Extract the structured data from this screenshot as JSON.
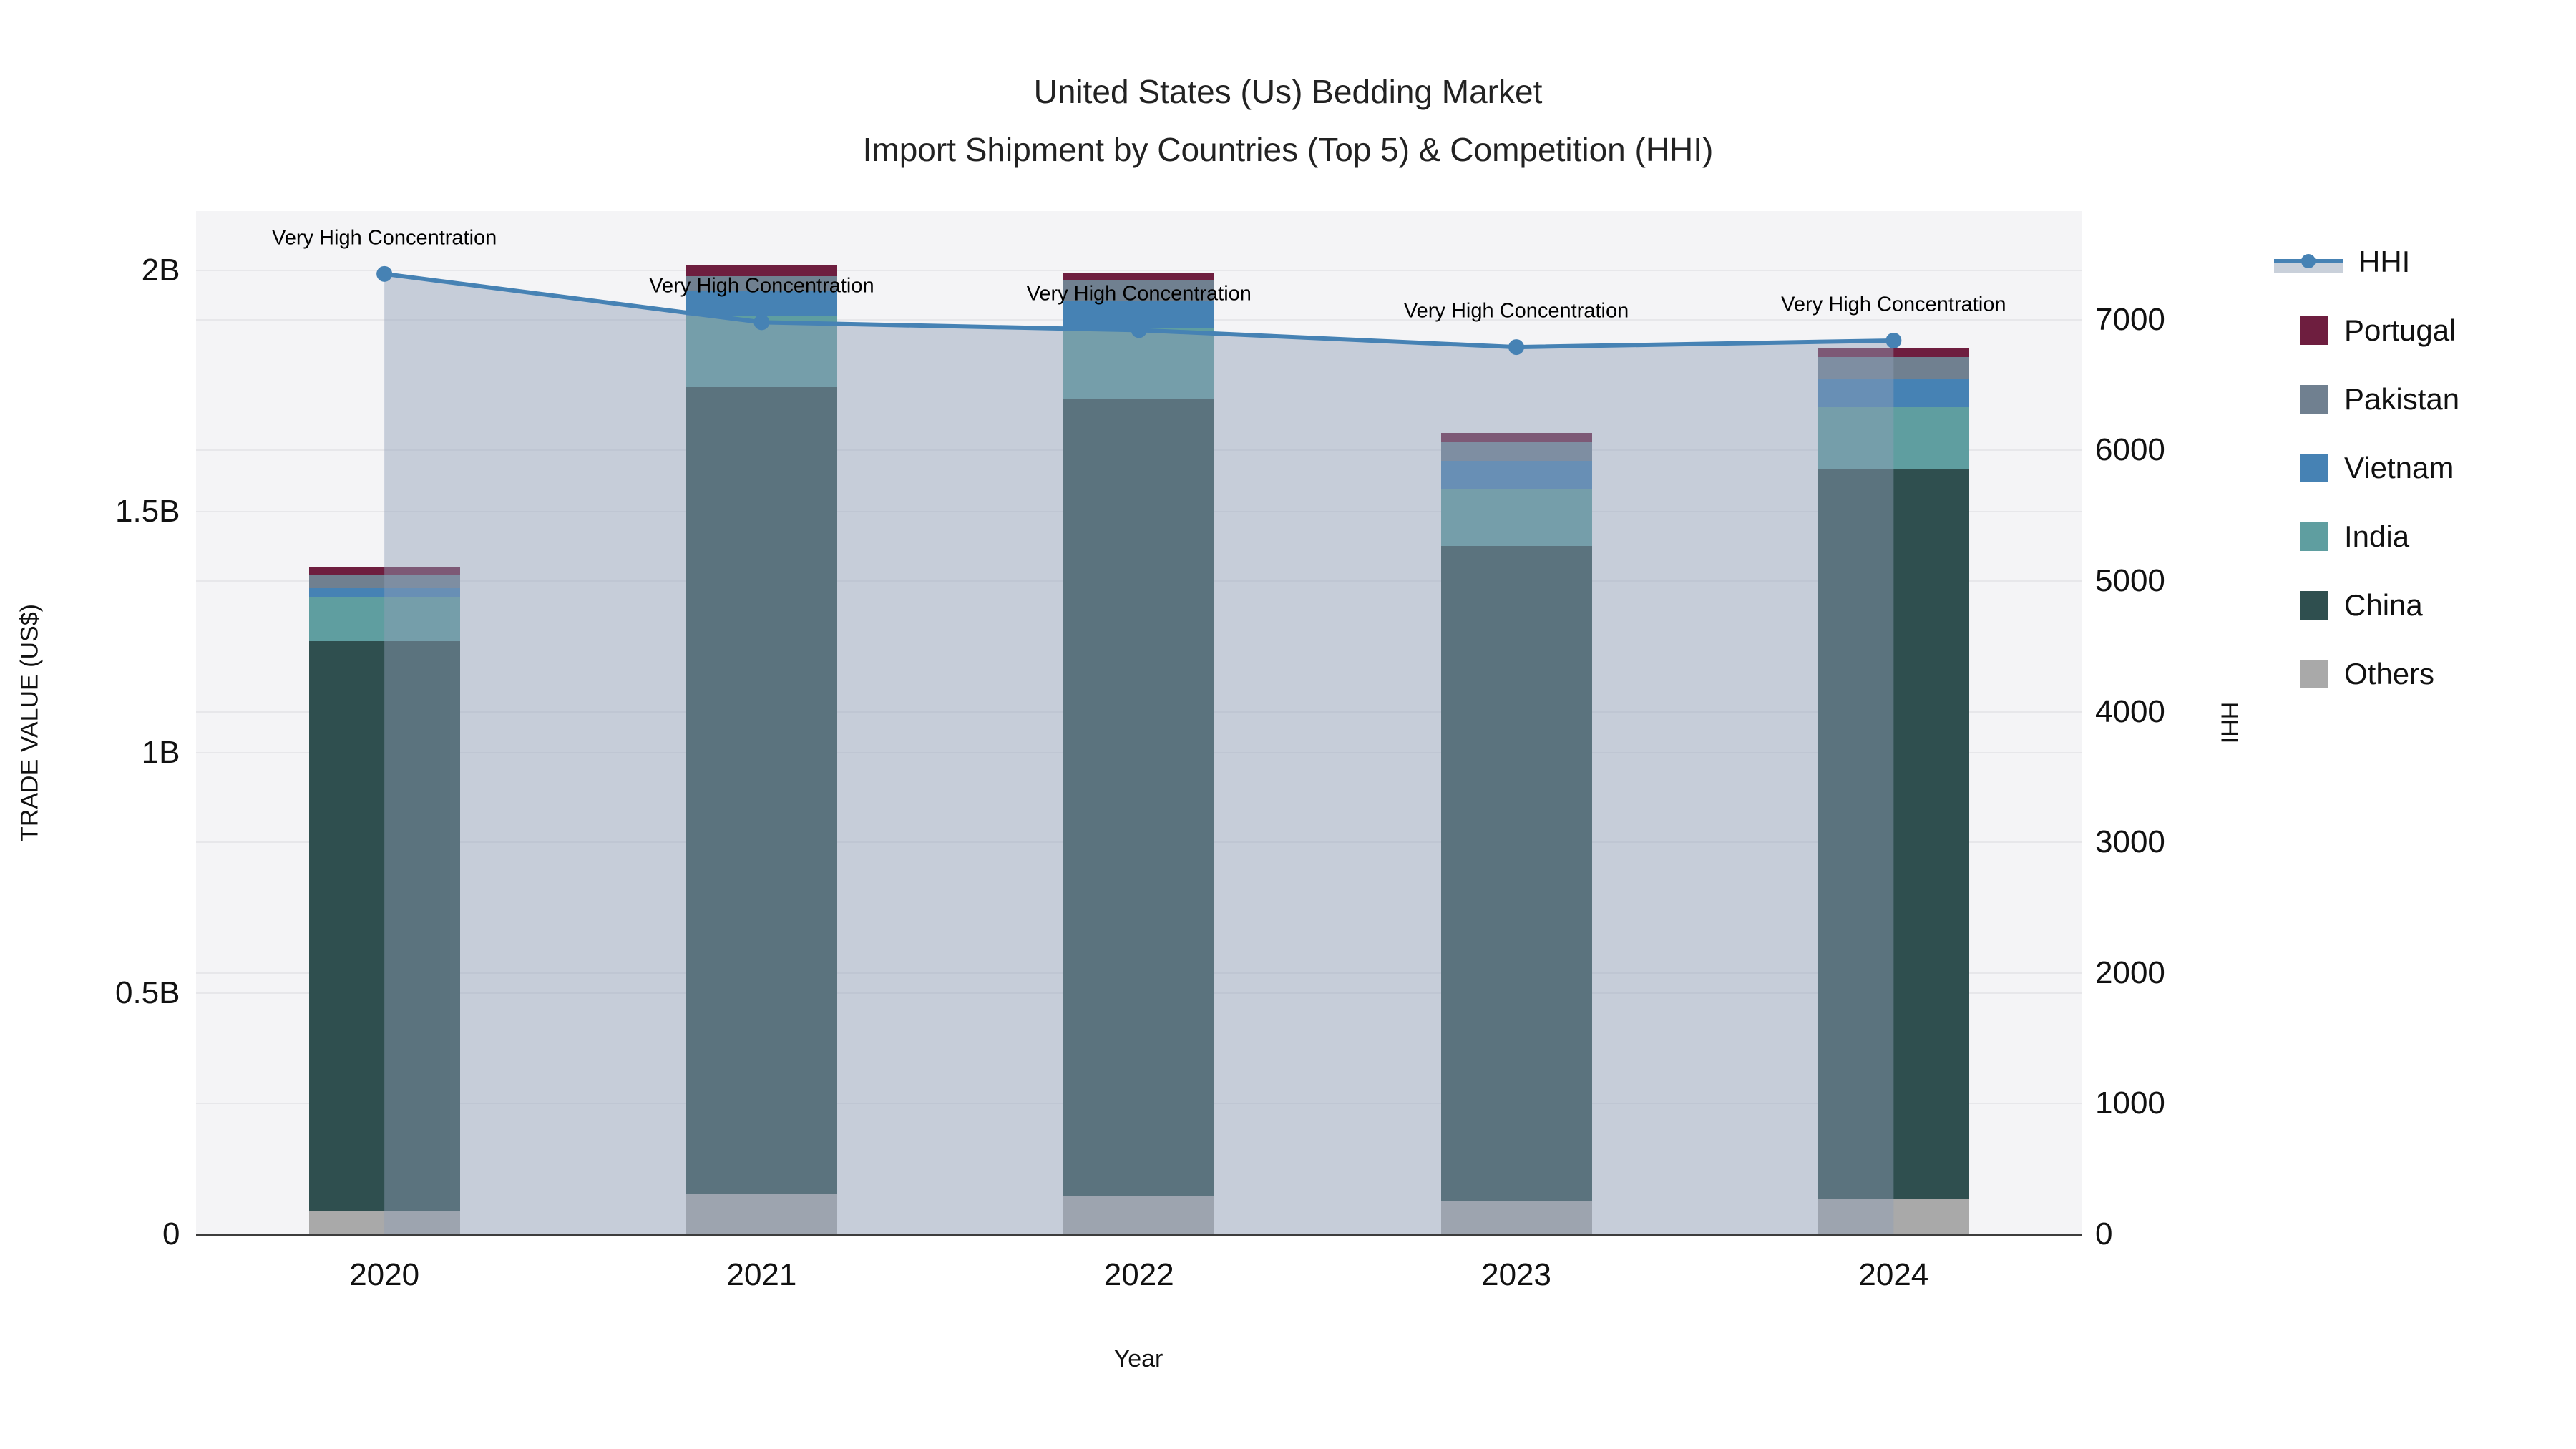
{
  "title": {
    "line1": "United States (Us) Bedding Market",
    "line2": "Import Shipment by Countries (Top 5) & Competition (HHI)"
  },
  "axes": {
    "y_left": {
      "title": "TRADE VALUE (US$)",
      "ticks": [
        {
          "value": 0,
          "label": "0"
        },
        {
          "value": 0.5,
          "label": "0.5B"
        },
        {
          "value": 1,
          "label": "1B"
        },
        {
          "value": 1.5,
          "label": "1.5B"
        },
        {
          "value": 2,
          "label": "2B"
        }
      ]
    },
    "y_right": {
      "title": "HHI",
      "ticks": [
        {
          "value": 0,
          "label": "0"
        },
        {
          "value": 1000,
          "label": "1000"
        },
        {
          "value": 2000,
          "label": "2000"
        },
        {
          "value": 3000,
          "label": "3000"
        },
        {
          "value": 4000,
          "label": "4000"
        },
        {
          "value": 5000,
          "label": "5000"
        },
        {
          "value": 6000,
          "label": "6000"
        },
        {
          "value": 7000,
          "label": "7000"
        }
      ]
    },
    "x": {
      "title": "Year"
    }
  },
  "legend": {
    "items": [
      {
        "label": "HHI",
        "type": "line",
        "color": "#4682b4"
      },
      {
        "label": "Portugal",
        "type": "box",
        "color": "#6e1e3f"
      },
      {
        "label": "Pakistan",
        "type": "box",
        "color": "#708090"
      },
      {
        "label": "Vietnam",
        "type": "box",
        "color": "#4682b4"
      },
      {
        "label": "India",
        "type": "box",
        "color": "#5f9ea0"
      },
      {
        "label": "China",
        "type": "box",
        "color": "#2f4f4f"
      },
      {
        "label": "Others",
        "type": "box",
        "color": "#a9a9a9"
      }
    ]
  },
  "annotation_text": "Very High Concentration",
  "chart_data": {
    "type": "bar+line",
    "title": "United States (Us) Bedding Market — Import Shipment by Countries (Top 5) & Competition (HHI)",
    "categories": [
      "2020",
      "2021",
      "2022",
      "2023",
      "2024"
    ],
    "stack_series": [
      {
        "name": "Others",
        "color": "#a9a9a9",
        "values_billion": [
          0.049,
          0.085,
          0.079,
          0.07,
          0.073
        ]
      },
      {
        "name": "China",
        "color": "#2f4f4f",
        "values_billion": [
          1.182,
          1.673,
          1.654,
          1.358,
          1.514
        ]
      },
      {
        "name": "India",
        "color": "#5f9ea0",
        "values_billion": [
          0.092,
          0.147,
          0.148,
          0.119,
          0.129
        ]
      },
      {
        "name": "Vietnam",
        "color": "#4682b4",
        "values_billion": [
          0.018,
          0.053,
          0.057,
          0.058,
          0.059
        ]
      },
      {
        "name": "Pakistan",
        "color": "#708090",
        "values_billion": [
          0.028,
          0.03,
          0.041,
          0.039,
          0.045
        ]
      },
      {
        "name": "Portugal",
        "color": "#6e1e3f",
        "values_billion": [
          0.015,
          0.023,
          0.016,
          0.019,
          0.018
        ]
      }
    ],
    "bar_totals_billion": [
      1.384,
      2.011,
      1.995,
      1.663,
      1.838
    ],
    "line_series": {
      "name": "HHI",
      "color": "#4682b4",
      "fill_color": "rgba(144,159,182,0.46)",
      "values": [
        7350,
        6980,
        6920,
        6790,
        6840
      ],
      "annotations": [
        "Very High Concentration",
        "Very High Concentration",
        "Very High Concentration",
        "Very High Concentration",
        "Very High Concentration"
      ]
    },
    "xlabel": "Year",
    "ylabel_left": "TRADE VALUE (US$)",
    "ylabel_right": "HHI",
    "ylim_left_billion": [
      0,
      2.1235
    ],
    "ylim_right": [
      0,
      7831
    ],
    "grid": true,
    "legend_position": "right"
  }
}
